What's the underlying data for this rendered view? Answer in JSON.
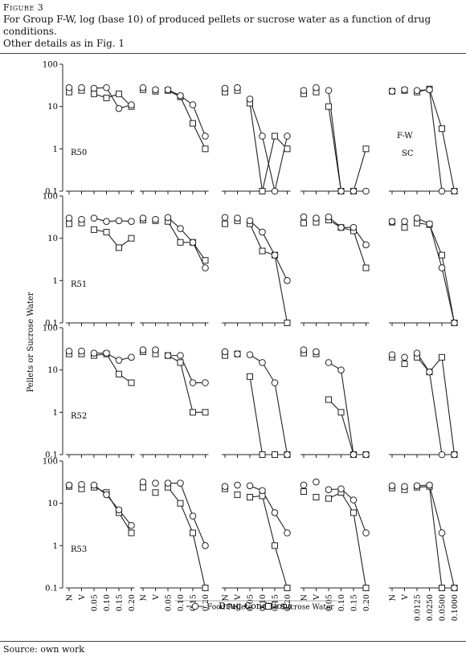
{
  "figure": {
    "label": "Figure 3",
    "caption_line1": "For Group F-W, log (base 10) of produced pellets or sucrose water as a function of drug conditions.",
    "caption_line2": "Other details as in Fig. 1",
    "source": "Source: own work"
  },
  "chart_data": {
    "type": "line",
    "scale": "log10",
    "ylabel": "Pellets or Sucrose Water",
    "xlabel": "Drug Conditions",
    "yticks": [
      "100",
      "10",
      "1",
      "0.1"
    ],
    "legend": [
      "Food Pellets",
      "Sucrose Water"
    ],
    "panel_note": [
      "F-W",
      "SC"
    ],
    "drugs": [
      {
        "x": [
          "N",
          "V",
          "0.05",
          "0.10",
          "0.15",
          "0.20"
        ]
      },
      {
        "x": [
          "N",
          "V",
          "0.05",
          "0.10",
          "0.15",
          "0.20"
        ]
      },
      {
        "x": [
          "N",
          "V",
          "0.05",
          "0.10",
          "0.15",
          "0.20"
        ]
      },
      {
        "x": [
          "N",
          "V",
          "0.05",
          "0.10",
          "0.15",
          "0.20"
        ]
      },
      {
        "x": [
          "N",
          "V",
          "0.0125",
          "0.0250",
          "0.0500",
          "0.1000"
        ]
      }
    ],
    "subjects": [
      {
        "name": "R50",
        "panels": [
          {
            "pellets": [
              28,
              28,
              27,
              28,
              9,
              11
            ],
            "water": [
              22,
              24,
              20,
              16,
              20,
              10
            ]
          },
          {
            "pellets": [
              28,
              25,
              25,
              18,
              11,
              2
            ],
            "water": [
              25,
              23,
              24,
              17,
              4,
              1
            ]
          },
          {
            "pellets": [
              27,
              28,
              15,
              2,
              0.1,
              2
            ],
            "water": [
              22,
              24,
              12,
              0.1,
              2,
              1
            ]
          },
          {
            "pellets": [
              24,
              28,
              24,
              0.1,
              0.1,
              0.1
            ],
            "water": [
              20,
              22,
              10,
              0.1,
              0.1,
              1
            ]
          },
          {
            "pellets": [
              23,
              25,
              24,
              25,
              0.1,
              0.1
            ],
            "water": [
              23,
              24,
              22,
              26,
              3,
              0.1
            ]
          }
        ]
      },
      {
        "name": "R51",
        "panels": [
          {
            "pellets": [
              30,
              28,
              30,
              25,
              26,
              25
            ],
            "water": [
              22,
              23,
              16,
              14,
              6,
              10
            ]
          },
          {
            "pellets": [
              30,
              28,
              31,
              17,
              8,
              2
            ],
            "water": [
              27,
              26,
              25,
              8,
              8,
              3
            ]
          },
          {
            "pellets": [
              31,
              30,
              26,
              14,
              4,
              1
            ],
            "water": [
              22,
              26,
              22,
              5,
              4,
              0.1
            ]
          },
          {
            "pellets": [
              32,
              30,
              32,
              18,
              18,
              7
            ],
            "water": [
              23,
              24,
              27,
              18,
              15,
              2
            ]
          },
          {
            "pellets": [
              25,
              25,
              30,
              22,
              2,
              0.1
            ],
            "water": [
              24,
              18,
              23,
              21,
              4,
              0.1
            ]
          }
        ]
      },
      {
        "name": "R52",
        "panels": [
          {
            "pellets": [
              28,
              28,
              25,
              25,
              17,
              20
            ],
            "water": [
              24,
              24,
              22,
              24,
              8,
              5
            ]
          },
          {
            "pellets": [
              30,
              30,
              22,
              22,
              5,
              5
            ],
            "water": [
              27,
              24,
              22,
              15,
              1,
              1
            ]
          },
          {
            "pellets": [
              27,
              24,
              23,
              15,
              5,
              0.1
            ],
            "water": [
              22,
              24,
              7,
              0.1,
              0.1,
              0.1
            ]
          },
          {
            "pellets": [
              30,
              27,
              15,
              10,
              0.1,
              0.1
            ],
            "water": [
              25,
              24,
              2,
              1,
              0.1,
              0.1
            ]
          },
          {
            "pellets": [
              23,
              20,
              25,
              9,
              0.1,
              0.1
            ],
            "water": [
              20,
              14,
              20,
              9,
              20,
              0.1
            ]
          }
        ]
      },
      {
        "name": "R53",
        "panels": [
          {
            "pellets": [
              27,
              28,
              27,
              16,
              7,
              3
            ],
            "water": [
              25,
              22,
              24,
              18,
              6,
              2
            ]
          },
          {
            "pellets": [
              32,
              30,
              30,
              30,
              5,
              1
            ],
            "water": [
              24,
              18,
              24,
              10,
              2,
              0.1
            ]
          },
          {
            "pellets": [
              25,
              27,
              26,
              20,
              6,
              2
            ],
            "water": [
              22,
              16,
              14,
              15,
              1,
              0.1
            ]
          },
          {
            "pellets": [
              27,
              32,
              21,
              22,
              12,
              2
            ],
            "water": [
              19,
              14,
              13,
              18,
              6,
              0.1
            ]
          },
          {
            "pellets": [
              26,
              25,
              26,
              27,
              2,
              0.1
            ],
            "water": [
              23,
              21,
              24,
              25,
              0.1,
              0.1
            ]
          }
        ]
      }
    ]
  }
}
